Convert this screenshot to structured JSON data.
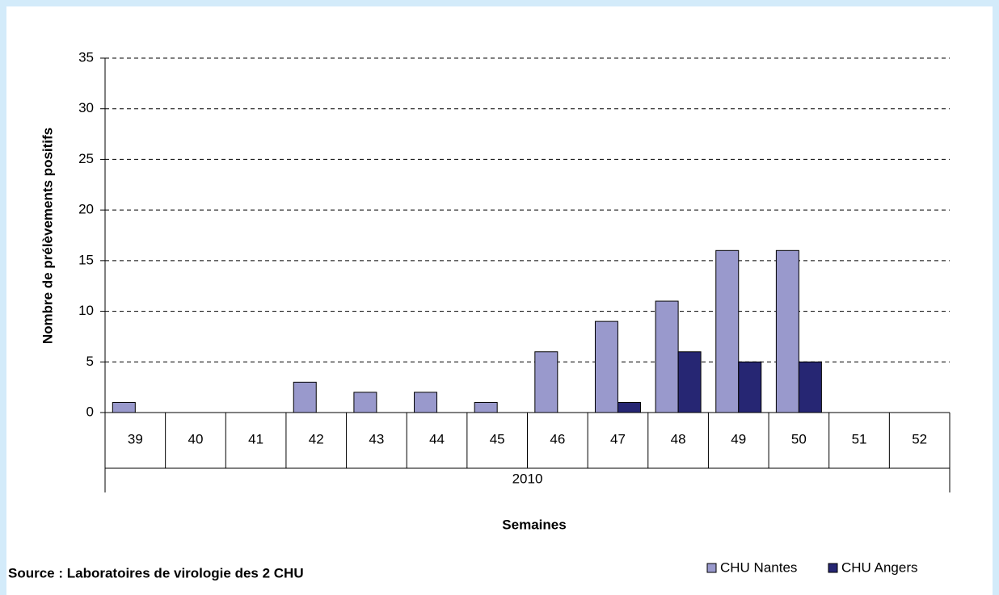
{
  "chart_data": {
    "type": "bar",
    "y_label": "Nombre de prélèvements positifs",
    "x_label": "Semaines",
    "x_group": "2010",
    "source": "Source : Laboratoires de virologie des 2 CHU",
    "categories": [
      "39",
      "40",
      "41",
      "42",
      "43",
      "44",
      "45",
      "46",
      "47",
      "48",
      "49",
      "50",
      "51",
      "52"
    ],
    "series": [
      {
        "name": "CHU Nantes",
        "color": "#9999cc",
        "values": [
          1,
          0,
          0,
          3,
          2,
          2,
          1,
          6,
          9,
          11,
          16,
          16,
          0,
          0
        ]
      },
      {
        "name": "CHU Angers",
        "color": "#262673",
        "values": [
          0,
          0,
          0,
          0,
          0,
          0,
          0,
          0,
          1,
          6,
          5,
          5,
          0,
          0
        ]
      }
    ],
    "ylim": [
      0,
      35
    ],
    "yticks": [
      0,
      5,
      10,
      15,
      20,
      25,
      30,
      35
    ],
    "grid": true,
    "legend": "bottom-right"
  }
}
